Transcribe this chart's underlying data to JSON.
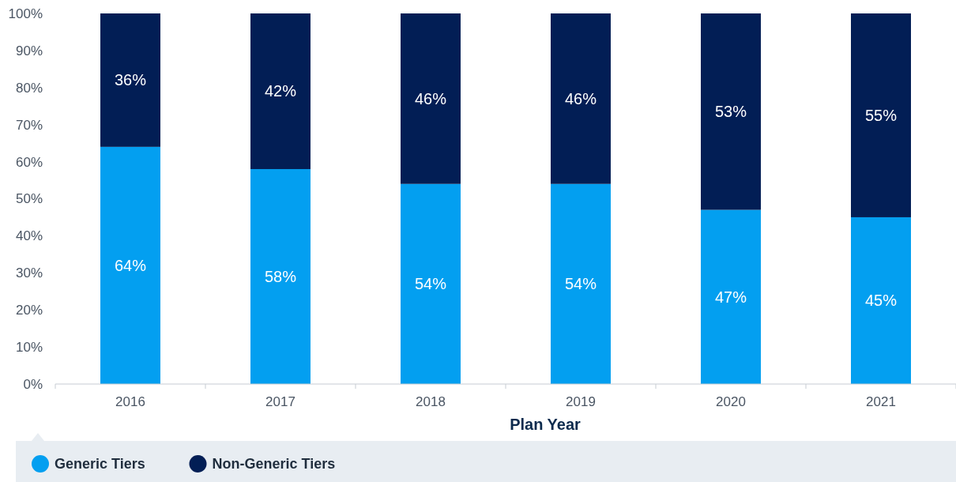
{
  "chart_data": {
    "type": "bar",
    "stacked": true,
    "xlabel": "Plan Year",
    "categories": [
      "2016",
      "2017",
      "2018",
      "2019",
      "2020",
      "2021"
    ],
    "series": [
      {
        "name": "Generic Tiers",
        "color": "#039ff0",
        "values": [
          64,
          58,
          54,
          54,
          47,
          45
        ],
        "value_labels": [
          "64%",
          "58%",
          "54%",
          "54%",
          "47%",
          "45%"
        ]
      },
      {
        "name": "Non-Generic Tiers",
        "color": "#021e55",
        "values": [
          36,
          42,
          46,
          46,
          53,
          55
        ],
        "value_labels": [
          "36%",
          "42%",
          "46%",
          "46%",
          "53%",
          "55%"
        ]
      }
    ],
    "ylim": [
      0,
      100
    ],
    "yticks": [
      {
        "value": 0,
        "label": "0%"
      },
      {
        "value": 10,
        "label": "10%"
      },
      {
        "value": 20,
        "label": "20%"
      },
      {
        "value": 30,
        "label": "30%"
      },
      {
        "value": 40,
        "label": "40%"
      },
      {
        "value": 50,
        "label": "50%"
      },
      {
        "value": 60,
        "label": "60%"
      },
      {
        "value": 70,
        "label": "70%"
      },
      {
        "value": 80,
        "label": "80%"
      },
      {
        "value": 90,
        "label": "90%"
      },
      {
        "value": 100,
        "label": "100%"
      }
    ],
    "grid": false,
    "legend": "bottom left"
  }
}
